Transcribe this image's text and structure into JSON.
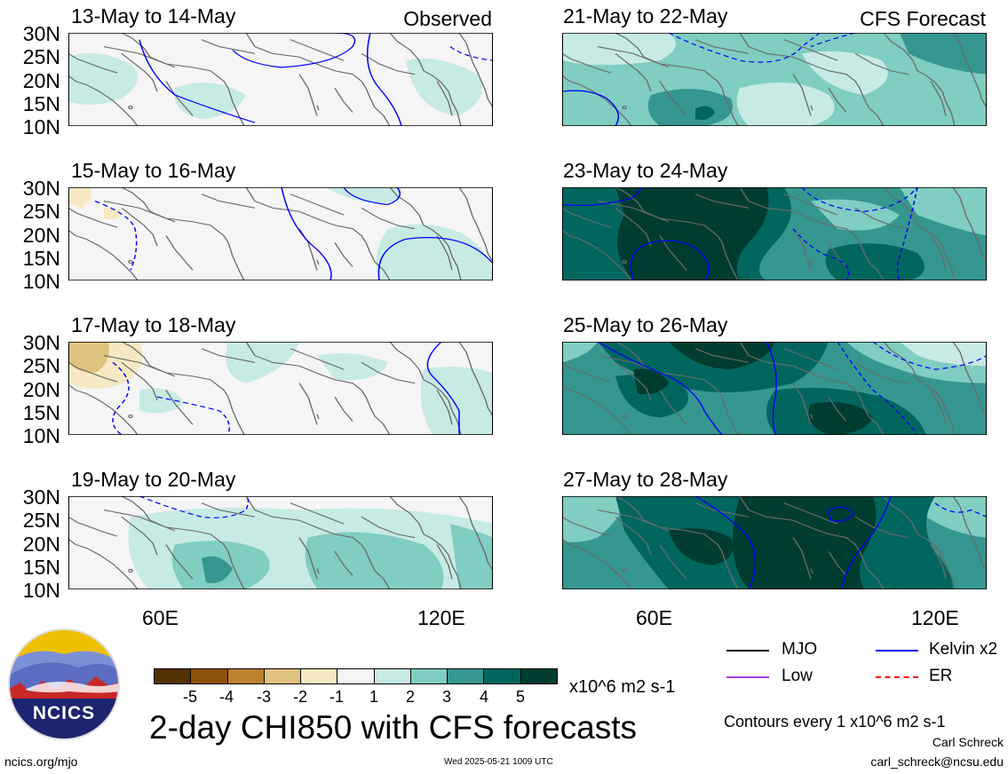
{
  "panels": {
    "left": [
      {
        "title": "13-May to 14-May",
        "corner": "Observed"
      },
      {
        "title": "15-May to 16-May",
        "corner": ""
      },
      {
        "title": "17-May to 18-May",
        "corner": ""
      },
      {
        "title": "19-May to 20-May",
        "corner": ""
      }
    ],
    "right": [
      {
        "title": "21-May to 22-May",
        "corner": "CFS Forecast"
      },
      {
        "title": "23-May to 24-May",
        "corner": ""
      },
      {
        "title": "25-May to 26-May",
        "corner": ""
      },
      {
        "title": "27-May to 28-May",
        "corner": ""
      }
    ]
  },
  "latitude_labels": [
    "30N",
    "25N",
    "20N",
    "15N",
    "10N"
  ],
  "longitude_labels": [
    "60E",
    "120E"
  ],
  "colorbar": {
    "ticks": [
      "-5",
      "-4",
      "-3",
      "-2",
      "-1",
      "1",
      "2",
      "3",
      "4",
      "5"
    ],
    "colors": [
      "#543005",
      "#8c510a",
      "#bf812d",
      "#dfc27d",
      "#f6e8c3",
      "#f5f5f5",
      "#c7eae5",
      "#80cdc1",
      "#35978f",
      "#01665e",
      "#003c30"
    ],
    "unit": "x10^6 m2 s-1"
  },
  "legend": [
    {
      "label": "MJO",
      "color": "#000000",
      "style": "solid"
    },
    {
      "label": "Kelvin x2",
      "color": "#0000ff",
      "style": "solid"
    },
    {
      "label": "Low",
      "color": "#a040e0",
      "style": "solid"
    },
    {
      "label": "ER",
      "color": "#ff0000",
      "style": "dashed"
    }
  ],
  "contours_note": "Contours every 1 x10^6 m2 s-1",
  "title": "2-day CHI850 with CFS forecasts",
  "logo_text": "NCICS",
  "url": "ncics.org/mjo",
  "timestamp": "Wed 2025-05-21 1009 UTC",
  "author": "Carl Schreck",
  "email": "carl_schreck@ncsu.edu"
}
